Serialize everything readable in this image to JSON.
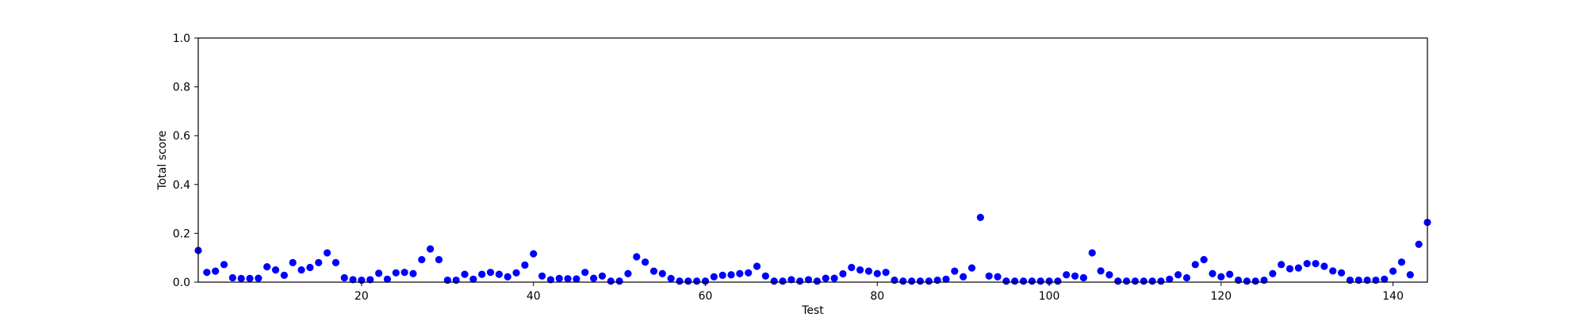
{
  "chart_data": {
    "type": "scatter",
    "title": "",
    "xlabel": "Test",
    "ylabel": "Total score",
    "xlim": [
      1,
      144
    ],
    "ylim": [
      0,
      1.0
    ],
    "x_ticks": [
      20,
      40,
      60,
      80,
      100,
      120,
      140
    ],
    "x_tick_labels": [
      "20",
      "40",
      "60",
      "80",
      "100",
      "120",
      "140"
    ],
    "y_ticks": [
      0.0,
      0.2,
      0.4,
      0.6,
      0.8,
      1.0
    ],
    "y_tick_labels": [
      "0.0",
      "0.2",
      "0.4",
      "0.6",
      "0.8",
      "1.0"
    ],
    "grid": false,
    "marker_color": "#0000ff",
    "series": [
      {
        "x": [
          1,
          2,
          3,
          4,
          5,
          6,
          7,
          8,
          9,
          10,
          11,
          12,
          13,
          14,
          15,
          16,
          17,
          18,
          19,
          20,
          21,
          22,
          23,
          24,
          25,
          26,
          27,
          28,
          29,
          30,
          31,
          32,
          33,
          34,
          35,
          36,
          37,
          38,
          39,
          40,
          41,
          42,
          43,
          44,
          45,
          46,
          47,
          48,
          49,
          50,
          51,
          52,
          53,
          54,
          55,
          56,
          57,
          58,
          59,
          60,
          61,
          62,
          63,
          64,
          65,
          66,
          67,
          68,
          69,
          70,
          71,
          72,
          73,
          74,
          75,
          76,
          77,
          78,
          79,
          80,
          81,
          82,
          83,
          84,
          85,
          86,
          87,
          88,
          89,
          90,
          91,
          92,
          93,
          94,
          95,
          96,
          97,
          98,
          99,
          100,
          101,
          102,
          103,
          104,
          105,
          106,
          107,
          108,
          109,
          110,
          111,
          112,
          113,
          114,
          115,
          116,
          117,
          118,
          119,
          120,
          121,
          122,
          123,
          124,
          125,
          126,
          127,
          128,
          129,
          130,
          131,
          132,
          133,
          134,
          135,
          136,
          137,
          138,
          139,
          140,
          141,
          142,
          143,
          144
        ],
        "values": [
          0.13,
          0.04,
          0.045,
          0.072,
          0.018,
          0.015,
          0.015,
          0.016,
          0.063,
          0.05,
          0.028,
          0.08,
          0.05,
          0.06,
          0.08,
          0.12,
          0.08,
          0.018,
          0.01,
          0.008,
          0.01,
          0.036,
          0.012,
          0.038,
          0.04,
          0.035,
          0.092,
          0.136,
          0.092,
          0.008,
          0.008,
          0.032,
          0.012,
          0.032,
          0.04,
          0.032,
          0.022,
          0.038,
          0.07,
          0.116,
          0.025,
          0.01,
          0.015,
          0.014,
          0.013,
          0.04,
          0.016,
          0.025,
          0.004,
          0.004,
          0.035,
          0.104,
          0.082,
          0.045,
          0.035,
          0.015,
          0.004,
          0.004,
          0.004,
          0.004,
          0.022,
          0.028,
          0.03,
          0.035,
          0.038,
          0.065,
          0.025,
          0.004,
          0.004,
          0.01,
          0.004,
          0.01,
          0.004,
          0.016,
          0.016,
          0.034,
          0.06,
          0.05,
          0.045,
          0.035,
          0.04,
          0.008,
          0.004,
          0.004,
          0.004,
          0.004,
          0.008,
          0.012,
          0.045,
          0.022,
          0.058,
          0.265,
          0.025,
          0.022,
          0.004,
          0.004,
          0.004,
          0.004,
          0.004,
          0.004,
          0.004,
          0.03,
          0.025,
          0.018,
          0.12,
          0.046,
          0.03,
          0.004,
          0.004,
          0.004,
          0.004,
          0.004,
          0.004,
          0.012,
          0.03,
          0.018,
          0.072,
          0.092,
          0.035,
          0.022,
          0.032,
          0.008,
          0.004,
          0.004,
          0.008,
          0.035,
          0.072,
          0.055,
          0.058,
          0.076,
          0.076,
          0.065,
          0.046,
          0.038,
          0.008,
          0.008,
          0.008,
          0.008,
          0.012,
          0.045,
          0.082,
          0.03,
          0.155,
          0.245
        ]
      }
    ]
  }
}
